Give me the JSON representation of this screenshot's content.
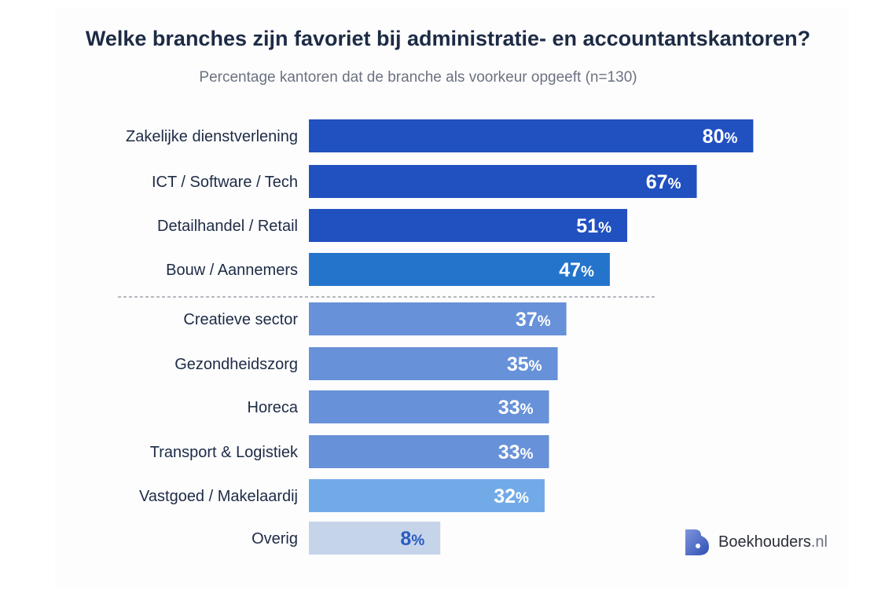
{
  "chart_data": {
    "type": "bar",
    "orientation": "horizontal",
    "title": "Welke branches zijn favoriet bij administratie- en accountantskantoren?",
    "subtitle": "Percentage kantoren dat de branche als voorkeur opgeeft (n=130)",
    "categories": [
      "Zakelijke dienstverlening",
      "ICT / Software / Tech",
      "Detailhandel / Retail",
      "Bouw / Aannemers",
      "Creatieve sector",
      "Gezondheidszorg",
      "Horeca",
      "Transport & Logistiek",
      "Vastgoed / Makelaardij",
      "Overig"
    ],
    "values": [
      80,
      67,
      51,
      47,
      37,
      35,
      33,
      33,
      32,
      8
    ],
    "value_suffix": "%",
    "colors": [
      "#2150c0",
      "#2150c0",
      "#2150c0",
      "#2474cc",
      "#6791d8",
      "#6791d8",
      "#6791d8",
      "#6791d8",
      "#72aae8",
      "#c6d4ea"
    ],
    "label_colors": [
      "#ffffff",
      "#ffffff",
      "#ffffff",
      "#ffffff",
      "#ffffff",
      "#ffffff",
      "#ffffff",
      "#ffffff",
      "#ffffff",
      "#2a5bc0"
    ],
    "divider_after_index": 3,
    "grid": false,
    "legend": "none"
  },
  "brand": {
    "name": "Boekhouders",
    "tld": ".nl",
    "colors": [
      "#4a6fd0",
      "#2f4fb5"
    ]
  }
}
